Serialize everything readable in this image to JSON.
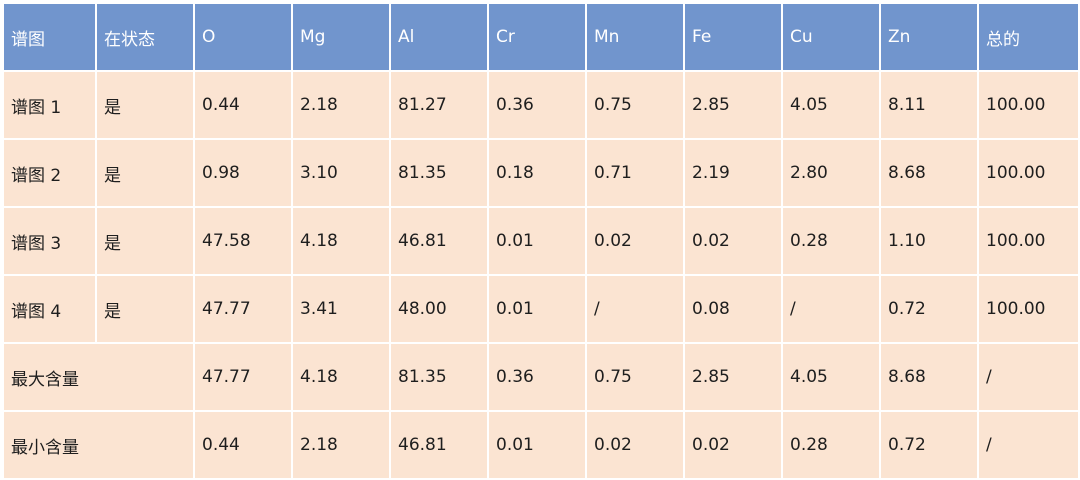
{
  "colors": {
    "header_bg": "#7195cd",
    "header_text": "#ffffff",
    "body_bg": "#fbe4d2",
    "body_text": "#1e1e1e",
    "grid_line": "#ffffff"
  },
  "table": {
    "headers": [
      "谱图",
      "在状态",
      "O",
      "Mg",
      "Al",
      "Cr",
      "Mn",
      "Fe",
      "Cu",
      "Zn",
      "总的"
    ],
    "spectra_rows": [
      [
        "谱图 1",
        "是",
        "0.44",
        "2.18",
        "81.27",
        "0.36",
        "0.75",
        "2.85",
        "4.05",
        "8.11",
        "100.00"
      ],
      [
        "谱图 2",
        "是",
        "0.98",
        "3.10",
        "81.35",
        "0.18",
        "0.71",
        "2.19",
        "2.80",
        "8.68",
        "100.00"
      ],
      [
        "谱图 3",
        "是",
        "47.58",
        "4.18",
        "46.81",
        "0.01",
        "0.02",
        "0.02",
        "0.28",
        "1.10",
        "100.00"
      ],
      [
        "谱图 4",
        "是",
        "47.77",
        "3.41",
        "48.00",
        "0.01",
        "/",
        "0.08",
        "/",
        "0.72",
        "100.00"
      ]
    ],
    "summary_rows": [
      [
        "最大含量",
        "47.77",
        "4.18",
        "81.35",
        "0.36",
        "0.75",
        "2.85",
        "4.05",
        "8.68",
        "/"
      ],
      [
        "最小含量",
        "0.44",
        "2.18",
        "46.81",
        "0.01",
        "0.02",
        "0.02",
        "0.28",
        "0.72",
        "/"
      ]
    ]
  }
}
